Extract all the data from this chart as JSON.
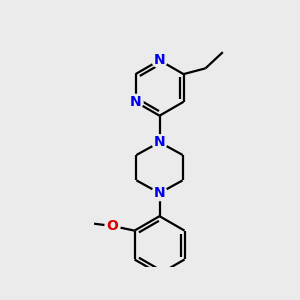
{
  "background_color": "#ebebeb",
  "atom_color_N": "#0000ee",
  "atom_color_O": "#dd0000",
  "bond_color": "#000000",
  "bond_width": 1.6,
  "font_size_atom": 10,
  "figsize": [
    3.0,
    3.0
  ],
  "dpi": 100,
  "xlim": [
    -1.6,
    1.6
  ],
  "ylim": [
    -2.3,
    1.7
  ]
}
